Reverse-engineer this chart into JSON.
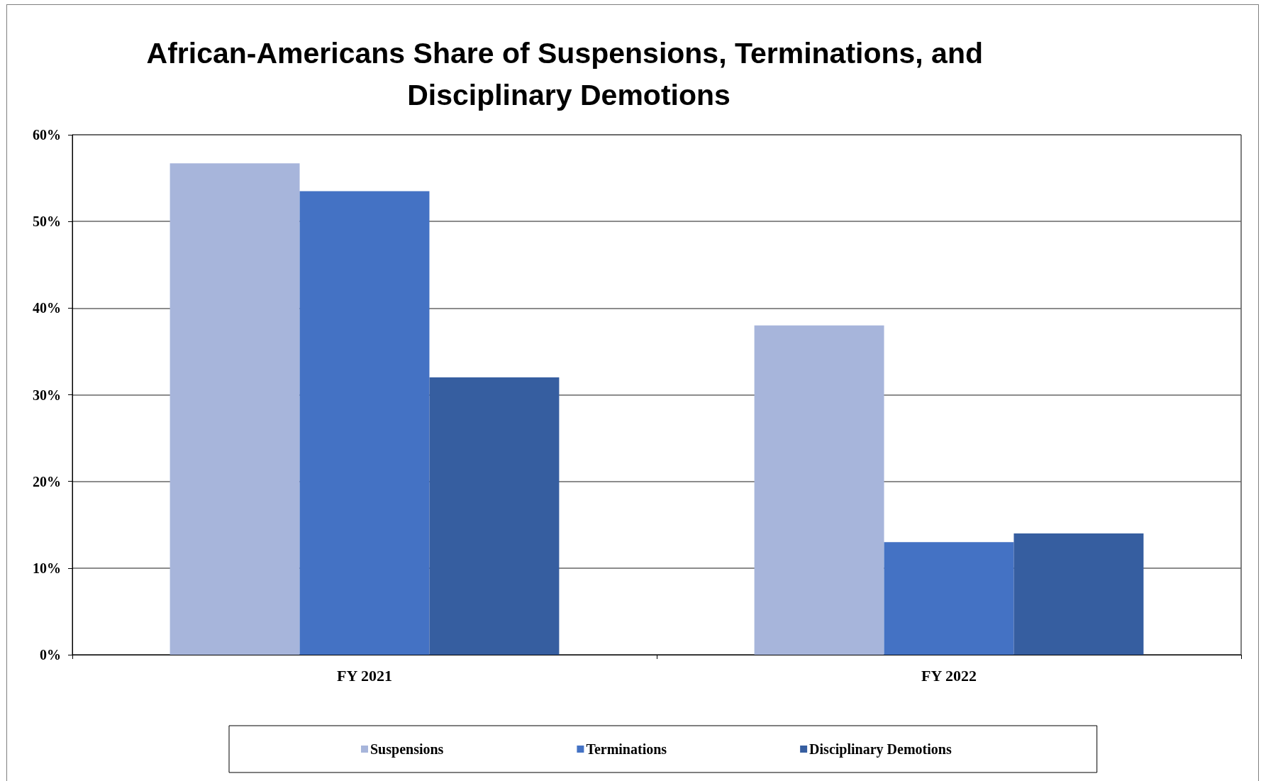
{
  "chart_data": {
    "type": "bar",
    "title": "African-Americans Share of Suspensions, Terminations, and Disciplinary Demotions",
    "categories": [
      "FY 2021",
      "FY 2022"
    ],
    "series": [
      {
        "name": "Suspensions",
        "color": "#a7b5db",
        "values": [
          56.7,
          38
        ]
      },
      {
        "name": "Terminations",
        "color": "#4472c4",
        "values": [
          53.5,
          13
        ]
      },
      {
        "name": "Disciplinary Demotions",
        "color": "#365ea0",
        "values": [
          32,
          14
        ]
      }
    ],
    "ylim": [
      0,
      60
    ],
    "yticks": [
      {
        "value": 0,
        "label": "0%"
      },
      {
        "value": 10,
        "label": "10%"
      },
      {
        "value": 20,
        "label": "20%"
      },
      {
        "value": 30,
        "label": "30%"
      },
      {
        "value": 40,
        "label": "40%"
      },
      {
        "value": 50,
        "label": "50%"
      },
      {
        "value": 60,
        "label": "60%"
      }
    ],
    "grid": "y",
    "legend": "bottom"
  }
}
